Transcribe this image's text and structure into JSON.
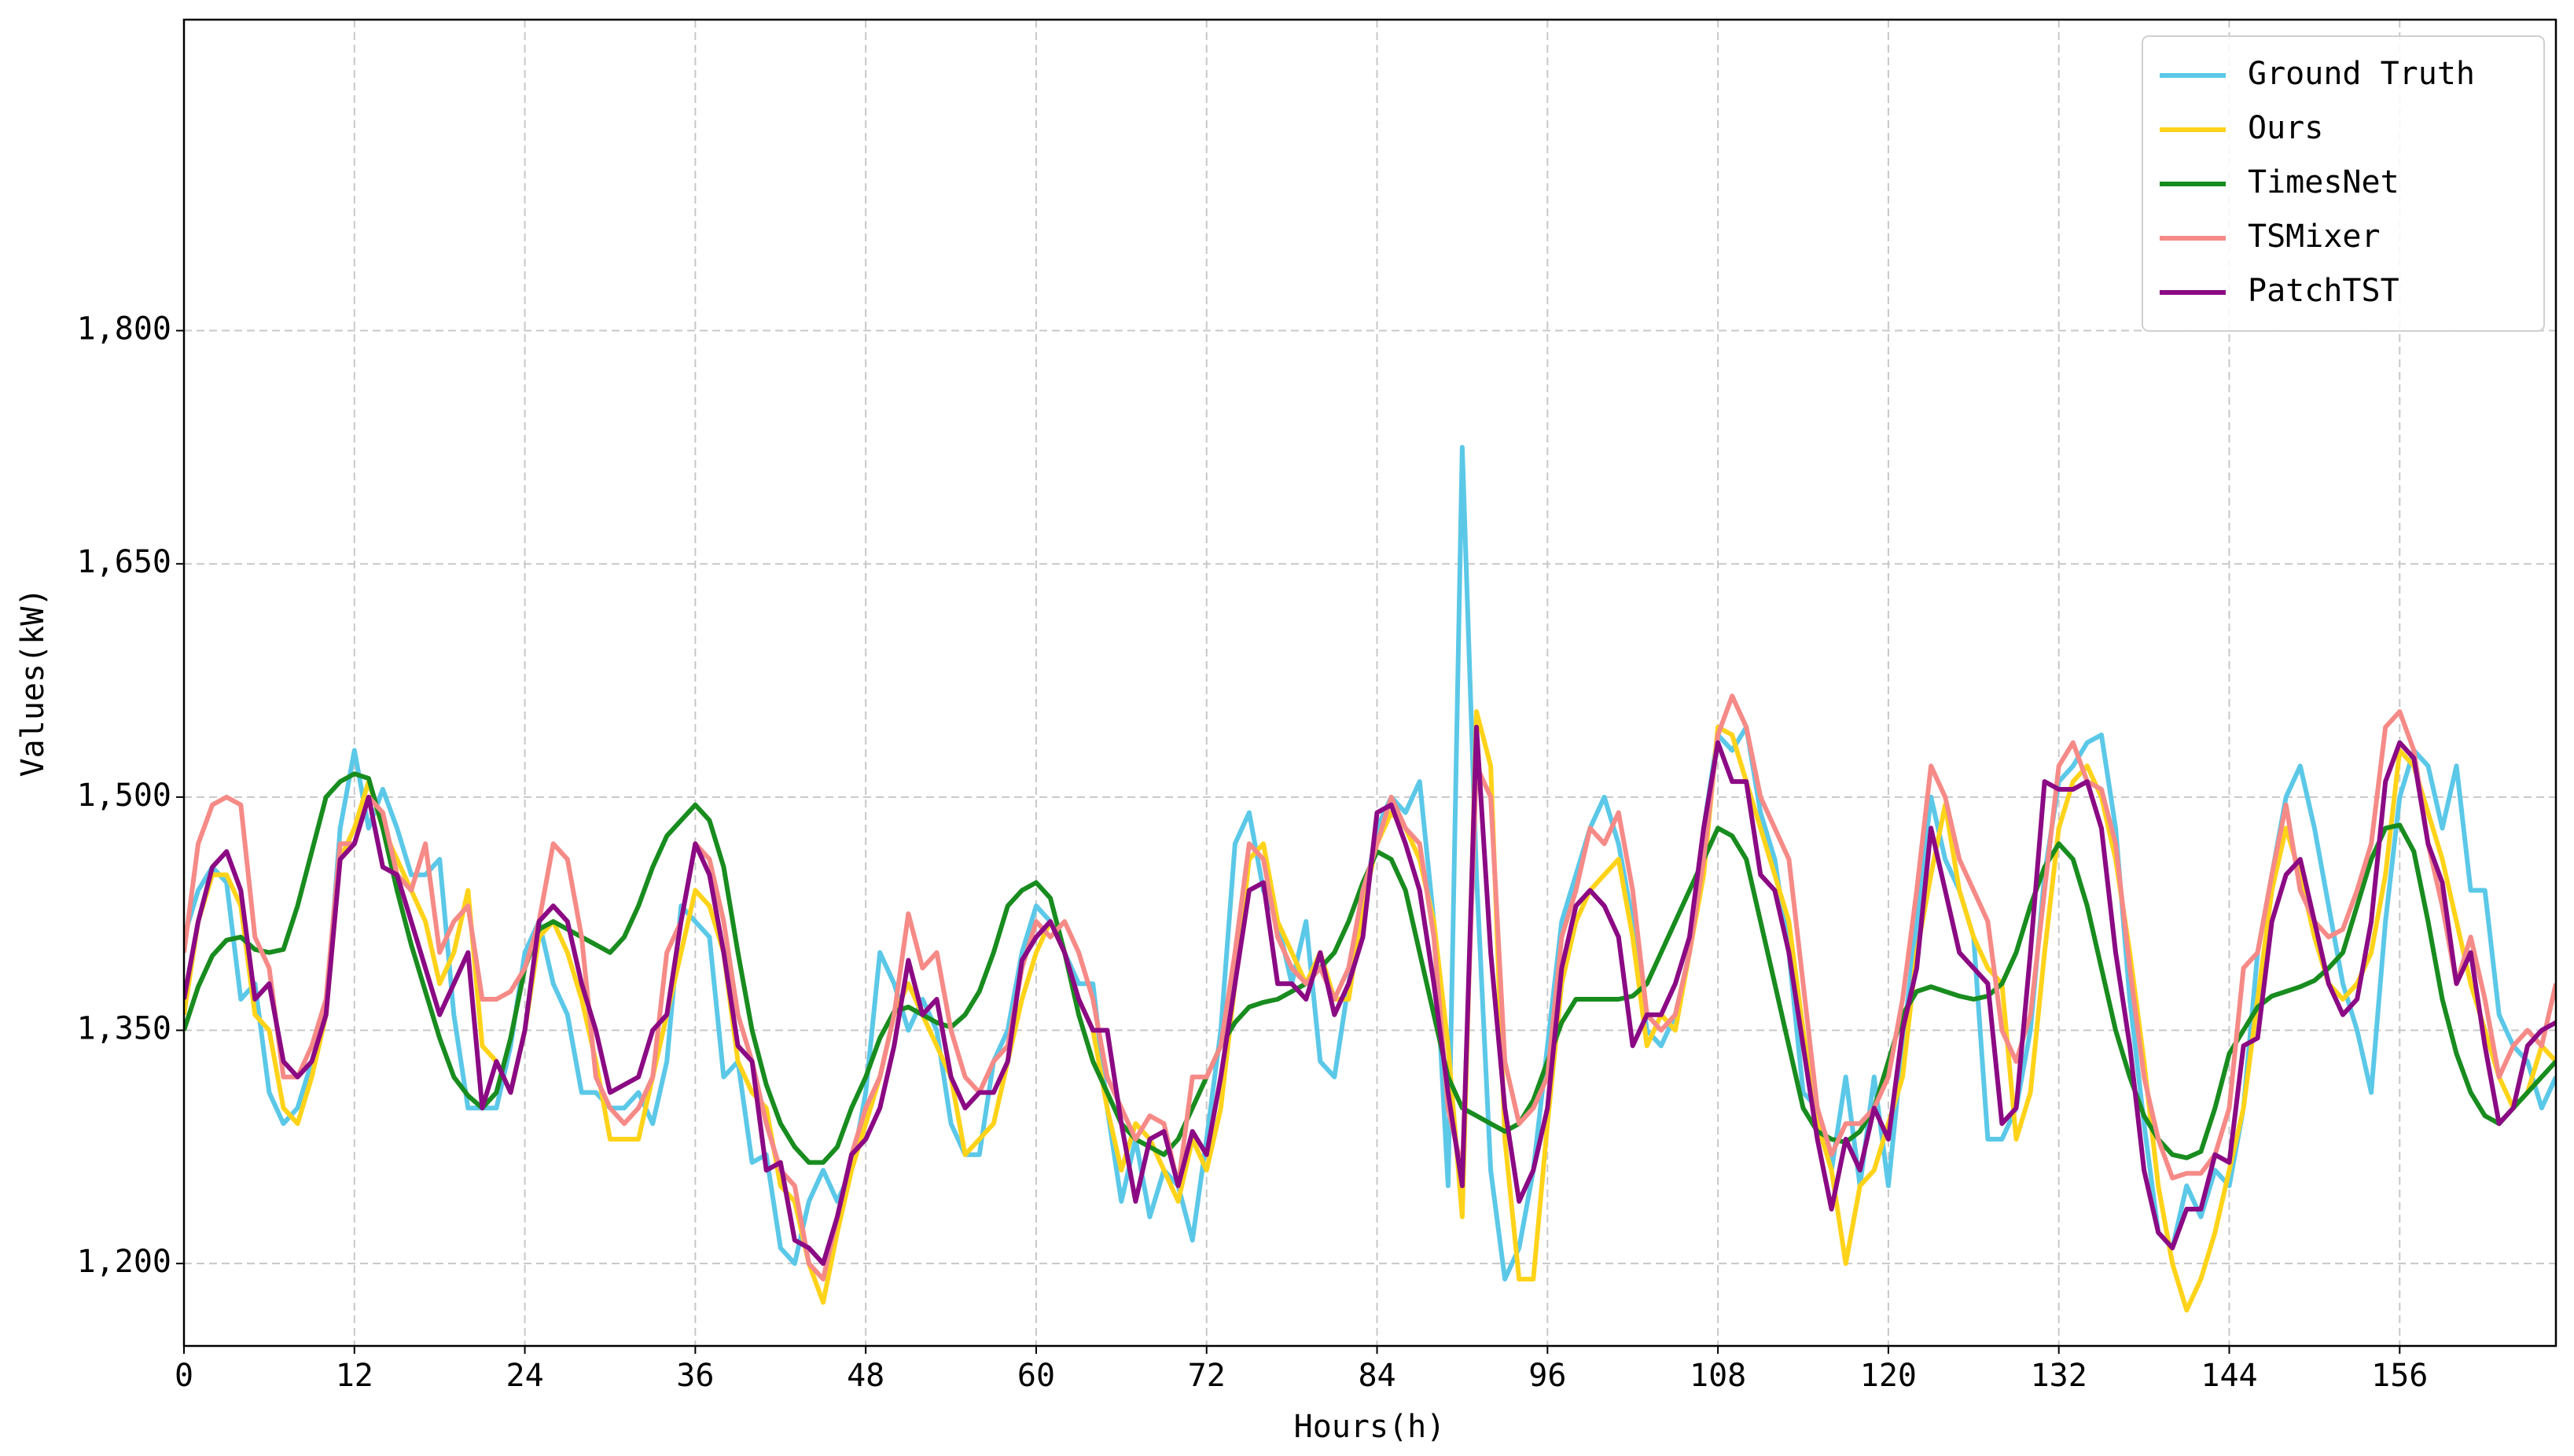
{
  "chart_data": {
    "type": "line",
    "xlabel": "Hours(h)",
    "ylabel": "Values(kW)",
    "xlim": [
      0,
      167
    ],
    "ylim": [
      1147,
      2000
    ],
    "xticks": [
      0,
      12,
      24,
      36,
      48,
      60,
      72,
      84,
      96,
      108,
      120,
      132,
      144,
      156
    ],
    "yticks": [
      {
        "value": 1200,
        "label": "1,200"
      },
      {
        "value": 1350,
        "label": "1,350"
      },
      {
        "value": 1500,
        "label": "1,500"
      },
      {
        "value": 1650,
        "label": "1,650"
      },
      {
        "value": 1800,
        "label": "1,800"
      }
    ],
    "grid": true,
    "legend": "upper right",
    "x": [
      0,
      1,
      2,
      3,
      4,
      5,
      6,
      7,
      8,
      9,
      10,
      11,
      12,
      13,
      14,
      15,
      16,
      17,
      18,
      19,
      20,
      21,
      22,
      23,
      24,
      25,
      26,
      27,
      28,
      29,
      30,
      31,
      32,
      33,
      34,
      35,
      36,
      37,
      38,
      39,
      40,
      41,
      42,
      43,
      44,
      45,
      46,
      47,
      48,
      49,
      50,
      51,
      52,
      53,
      54,
      55,
      56,
      57,
      58,
      59,
      60,
      61,
      62,
      63,
      64,
      65,
      66,
      67,
      68,
      69,
      70,
      71,
      72,
      73,
      74,
      75,
      76,
      77,
      78,
      79,
      80,
      81,
      82,
      83,
      84,
      85,
      86,
      87,
      88,
      89,
      90,
      91,
      92,
      93,
      94,
      95,
      96,
      97,
      98,
      99,
      100,
      101,
      102,
      103,
      104,
      105,
      106,
      107,
      108,
      109,
      110,
      111,
      112,
      113,
      114,
      115,
      116,
      117,
      118,
      119,
      120,
      121,
      122,
      123,
      124,
      125,
      126,
      127,
      128,
      129,
      130,
      131,
      132,
      133,
      134,
      135,
      136,
      137,
      138,
      139,
      140,
      141,
      142,
      143,
      144,
      145,
      146,
      147,
      148,
      149,
      150,
      151,
      152,
      153,
      154,
      155,
      156,
      157,
      158,
      159,
      160,
      161,
      162,
      163,
      164,
      165,
      166,
      167
    ],
    "series": [
      {
        "name": "Ground Truth",
        "color": "#5bc8e8",
        "values": [
          1410,
          1440,
          1455,
          1445,
          1370,
          1380,
          1310,
          1290,
          1300,
          1330,
          1360,
          1480,
          1530,
          1480,
          1505,
          1480,
          1450,
          1450,
          1460,
          1360,
          1300,
          1300,
          1300,
          1340,
          1400,
          1420,
          1380,
          1360,
          1310,
          1310,
          1300,
          1300,
          1310,
          1290,
          1330,
          1430,
          1420,
          1410,
          1320,
          1330,
          1265,
          1270,
          1210,
          1200,
          1240,
          1260,
          1240,
          1260,
          1310,
          1400,
          1380,
          1350,
          1370,
          1350,
          1290,
          1270,
          1270,
          1330,
          1350,
          1400,
          1430,
          1420,
          1400,
          1380,
          1380,
          1300,
          1240,
          1280,
          1230,
          1260,
          1250,
          1215,
          1280,
          1350,
          1470,
          1490,
          1440,
          1420,
          1380,
          1420,
          1330,
          1320,
          1380,
          1430,
          1480,
          1500,
          1490,
          1510,
          1420,
          1250,
          1725,
          1450,
          1260,
          1190,
          1210,
          1260,
          1340,
          1420,
          1450,
          1480,
          1500,
          1470,
          1420,
          1350,
          1340,
          1360,
          1400,
          1480,
          1540,
          1530,
          1545,
          1490,
          1460,
          1400,
          1310,
          1300,
          1260,
          1320,
          1250,
          1320,
          1250,
          1340,
          1420,
          1500,
          1460,
          1440,
          1410,
          1280,
          1280,
          1300,
          1350,
          1450,
          1510,
          1520,
          1535,
          1540,
          1480,
          1370,
          1290,
          1220,
          1210,
          1250,
          1230,
          1260,
          1250,
          1300,
          1400,
          1450,
          1500,
          1520,
          1480,
          1430,
          1380,
          1350,
          1310,
          1420,
          1500,
          1530,
          1520,
          1480,
          1520,
          1440,
          1440,
          1360,
          1340,
          1330,
          1300,
          1320
        ]
      },
      {
        "name": "Ours",
        "color": "#ffd31a",
        "values": [
          1360,
          1420,
          1450,
          1450,
          1430,
          1360,
          1350,
          1300,
          1290,
          1320,
          1360,
          1460,
          1480,
          1510,
          1480,
          1460,
          1440,
          1420,
          1380,
          1400,
          1440,
          1340,
          1330,
          1310,
          1350,
          1410,
          1420,
          1400,
          1370,
          1330,
          1280,
          1280,
          1280,
          1320,
          1360,
          1400,
          1440,
          1430,
          1400,
          1330,
          1310,
          1300,
          1250,
          1240,
          1200,
          1175,
          1220,
          1260,
          1290,
          1320,
          1360,
          1380,
          1360,
          1340,
          1320,
          1270,
          1280,
          1290,
          1330,
          1370,
          1400,
          1420,
          1400,
          1370,
          1350,
          1300,
          1260,
          1290,
          1280,
          1260,
          1240,
          1280,
          1260,
          1300,
          1380,
          1460,
          1470,
          1420,
          1400,
          1380,
          1400,
          1370,
          1370,
          1430,
          1470,
          1490,
          1480,
          1460,
          1420,
          1340,
          1230,
          1555,
          1520,
          1280,
          1190,
          1190,
          1290,
          1380,
          1420,
          1440,
          1450,
          1460,
          1410,
          1340,
          1360,
          1350,
          1400,
          1450,
          1545,
          1540,
          1510,
          1480,
          1450,
          1420,
          1350,
          1290,
          1260,
          1200,
          1250,
          1260,
          1290,
          1320,
          1400,
          1450,
          1495,
          1440,
          1410,
          1390,
          1380,
          1280,
          1310,
          1400,
          1480,
          1510,
          1520,
          1500,
          1460,
          1400,
          1330,
          1250,
          1200,
          1170,
          1190,
          1220,
          1260,
          1300,
          1370,
          1440,
          1480,
          1450,
          1410,
          1380,
          1370,
          1380,
          1400,
          1450,
          1530,
          1520,
          1490,
          1460,
          1420,
          1380,
          1350,
          1320,
          1300,
          1310,
          1340,
          1330
        ]
      },
      {
        "name": "TimesNet",
        "color": "#188c1e",
        "values": [
          1350,
          1378,
          1398,
          1408,
          1410,
          1402,
          1400,
          1402,
          1430,
          1465,
          1500,
          1510,
          1515,
          1512,
          1480,
          1440,
          1405,
          1375,
          1345,
          1320,
          1308,
          1300,
          1310,
          1345,
          1390,
          1415,
          1420,
          1415,
          1410,
          1405,
          1400,
          1410,
          1430,
          1455,
          1475,
          1485,
          1495,
          1485,
          1455,
          1400,
          1350,
          1315,
          1290,
          1275,
          1265,
          1265,
          1275,
          1300,
          1320,
          1345,
          1362,
          1365,
          1360,
          1355,
          1352,
          1360,
          1375,
          1400,
          1430,
          1440,
          1445,
          1435,
          1400,
          1360,
          1330,
          1310,
          1290,
          1280,
          1275,
          1270,
          1280,
          1300,
          1320,
          1340,
          1355,
          1365,
          1368,
          1370,
          1375,
          1380,
          1390,
          1400,
          1420,
          1445,
          1465,
          1460,
          1440,
          1400,
          1360,
          1320,
          1300,
          1295,
          1290,
          1285,
          1290,
          1305,
          1330,
          1355,
          1370,
          1370,
          1370,
          1370,
          1372,
          1380,
          1400,
          1420,
          1440,
          1460,
          1480,
          1475,
          1460,
          1420,
          1380,
          1340,
          1300,
          1285,
          1280,
          1278,
          1285,
          1300,
          1330,
          1360,
          1375,
          1378,
          1375,
          1372,
          1370,
          1372,
          1380,
          1400,
          1430,
          1455,
          1470,
          1460,
          1430,
          1390,
          1350,
          1320,
          1295,
          1280,
          1270,
          1268,
          1272,
          1300,
          1335,
          1350,
          1365,
          1372,
          1375,
          1378,
          1382,
          1390,
          1400,
          1430,
          1460,
          1480,
          1482,
          1465,
          1420,
          1370,
          1335,
          1310,
          1295,
          1290,
          1300,
          1310,
          1320,
          1330
        ]
      },
      {
        "name": "TSMixer",
        "color": "#f58a87",
        "values": [
          1400,
          1470,
          1495,
          1500,
          1495,
          1410,
          1390,
          1320,
          1320,
          1340,
          1370,
          1470,
          1470,
          1500,
          1490,
          1450,
          1440,
          1470,
          1400,
          1420,
          1430,
          1370,
          1370,
          1375,
          1390,
          1420,
          1470,
          1460,
          1410,
          1320,
          1300,
          1290,
          1300,
          1320,
          1400,
          1420,
          1470,
          1460,
          1420,
          1360,
          1330,
          1290,
          1260,
          1250,
          1200,
          1190,
          1230,
          1270,
          1300,
          1320,
          1360,
          1425,
          1390,
          1400,
          1350,
          1320,
          1310,
          1330,
          1340,
          1390,
          1420,
          1410,
          1420,
          1400,
          1370,
          1320,
          1300,
          1280,
          1295,
          1290,
          1250,
          1320,
          1320,
          1340,
          1400,
          1470,
          1460,
          1410,
          1390,
          1380,
          1390,
          1370,
          1390,
          1440,
          1470,
          1500,
          1480,
          1470,
          1410,
          1300,
          1260,
          1520,
          1500,
          1330,
          1290,
          1300,
          1320,
          1410,
          1440,
          1480,
          1470,
          1490,
          1440,
          1360,
          1350,
          1360,
          1400,
          1460,
          1540,
          1565,
          1545,
          1500,
          1480,
          1460,
          1380,
          1300,
          1270,
          1290,
          1290,
          1300,
          1320,
          1370,
          1440,
          1520,
          1500,
          1460,
          1440,
          1420,
          1350,
          1330,
          1360,
          1440,
          1520,
          1535,
          1510,
          1505,
          1470,
          1390,
          1320,
          1280,
          1255,
          1258,
          1258,
          1270,
          1300,
          1390,
          1400,
          1450,
          1495,
          1440,
          1420,
          1410,
          1415,
          1440,
          1470,
          1545,
          1555,
          1530,
          1470,
          1430,
          1380,
          1410,
          1370,
          1320,
          1340,
          1350,
          1340,
          1380
        ]
      },
      {
        "name": "PatchTST",
        "color": "#8b0a84",
        "values": [
          1370,
          1420,
          1455,
          1465,
          1440,
          1370,
          1380,
          1330,
          1320,
          1330,
          1360,
          1460,
          1470,
          1500,
          1455,
          1450,
          1420,
          1390,
          1360,
          1380,
          1400,
          1300,
          1330,
          1310,
          1350,
          1420,
          1430,
          1420,
          1380,
          1350,
          1310,
          1315,
          1320,
          1350,
          1360,
          1420,
          1470,
          1450,
          1400,
          1340,
          1330,
          1260,
          1265,
          1215,
          1210,
          1200,
          1230,
          1270,
          1280,
          1300,
          1340,
          1395,
          1360,
          1370,
          1320,
          1300,
          1310,
          1310,
          1330,
          1395,
          1410,
          1420,
          1400,
          1370,
          1350,
          1350,
          1290,
          1240,
          1280,
          1285,
          1250,
          1285,
          1270,
          1320,
          1380,
          1440,
          1445,
          1380,
          1380,
          1370,
          1400,
          1360,
          1380,
          1410,
          1490,
          1495,
          1470,
          1440,
          1380,
          1310,
          1250,
          1545,
          1400,
          1300,
          1240,
          1260,
          1300,
          1390,
          1430,
          1440,
          1430,
          1410,
          1340,
          1360,
          1360,
          1380,
          1410,
          1480,
          1535,
          1510,
          1510,
          1450,
          1440,
          1400,
          1340,
          1280,
          1235,
          1280,
          1260,
          1300,
          1280,
          1350,
          1390,
          1480,
          1440,
          1400,
          1390,
          1380,
          1290,
          1300,
          1400,
          1510,
          1505,
          1505,
          1510,
          1480,
          1400,
          1340,
          1260,
          1220,
          1210,
          1235,
          1235,
          1270,
          1265,
          1340,
          1345,
          1420,
          1450,
          1460,
          1420,
          1380,
          1360,
          1370,
          1420,
          1510,
          1535,
          1525,
          1470,
          1445,
          1380,
          1400,
          1340,
          1290,
          1300,
          1340,
          1350,
          1355
        ]
      }
    ]
  }
}
